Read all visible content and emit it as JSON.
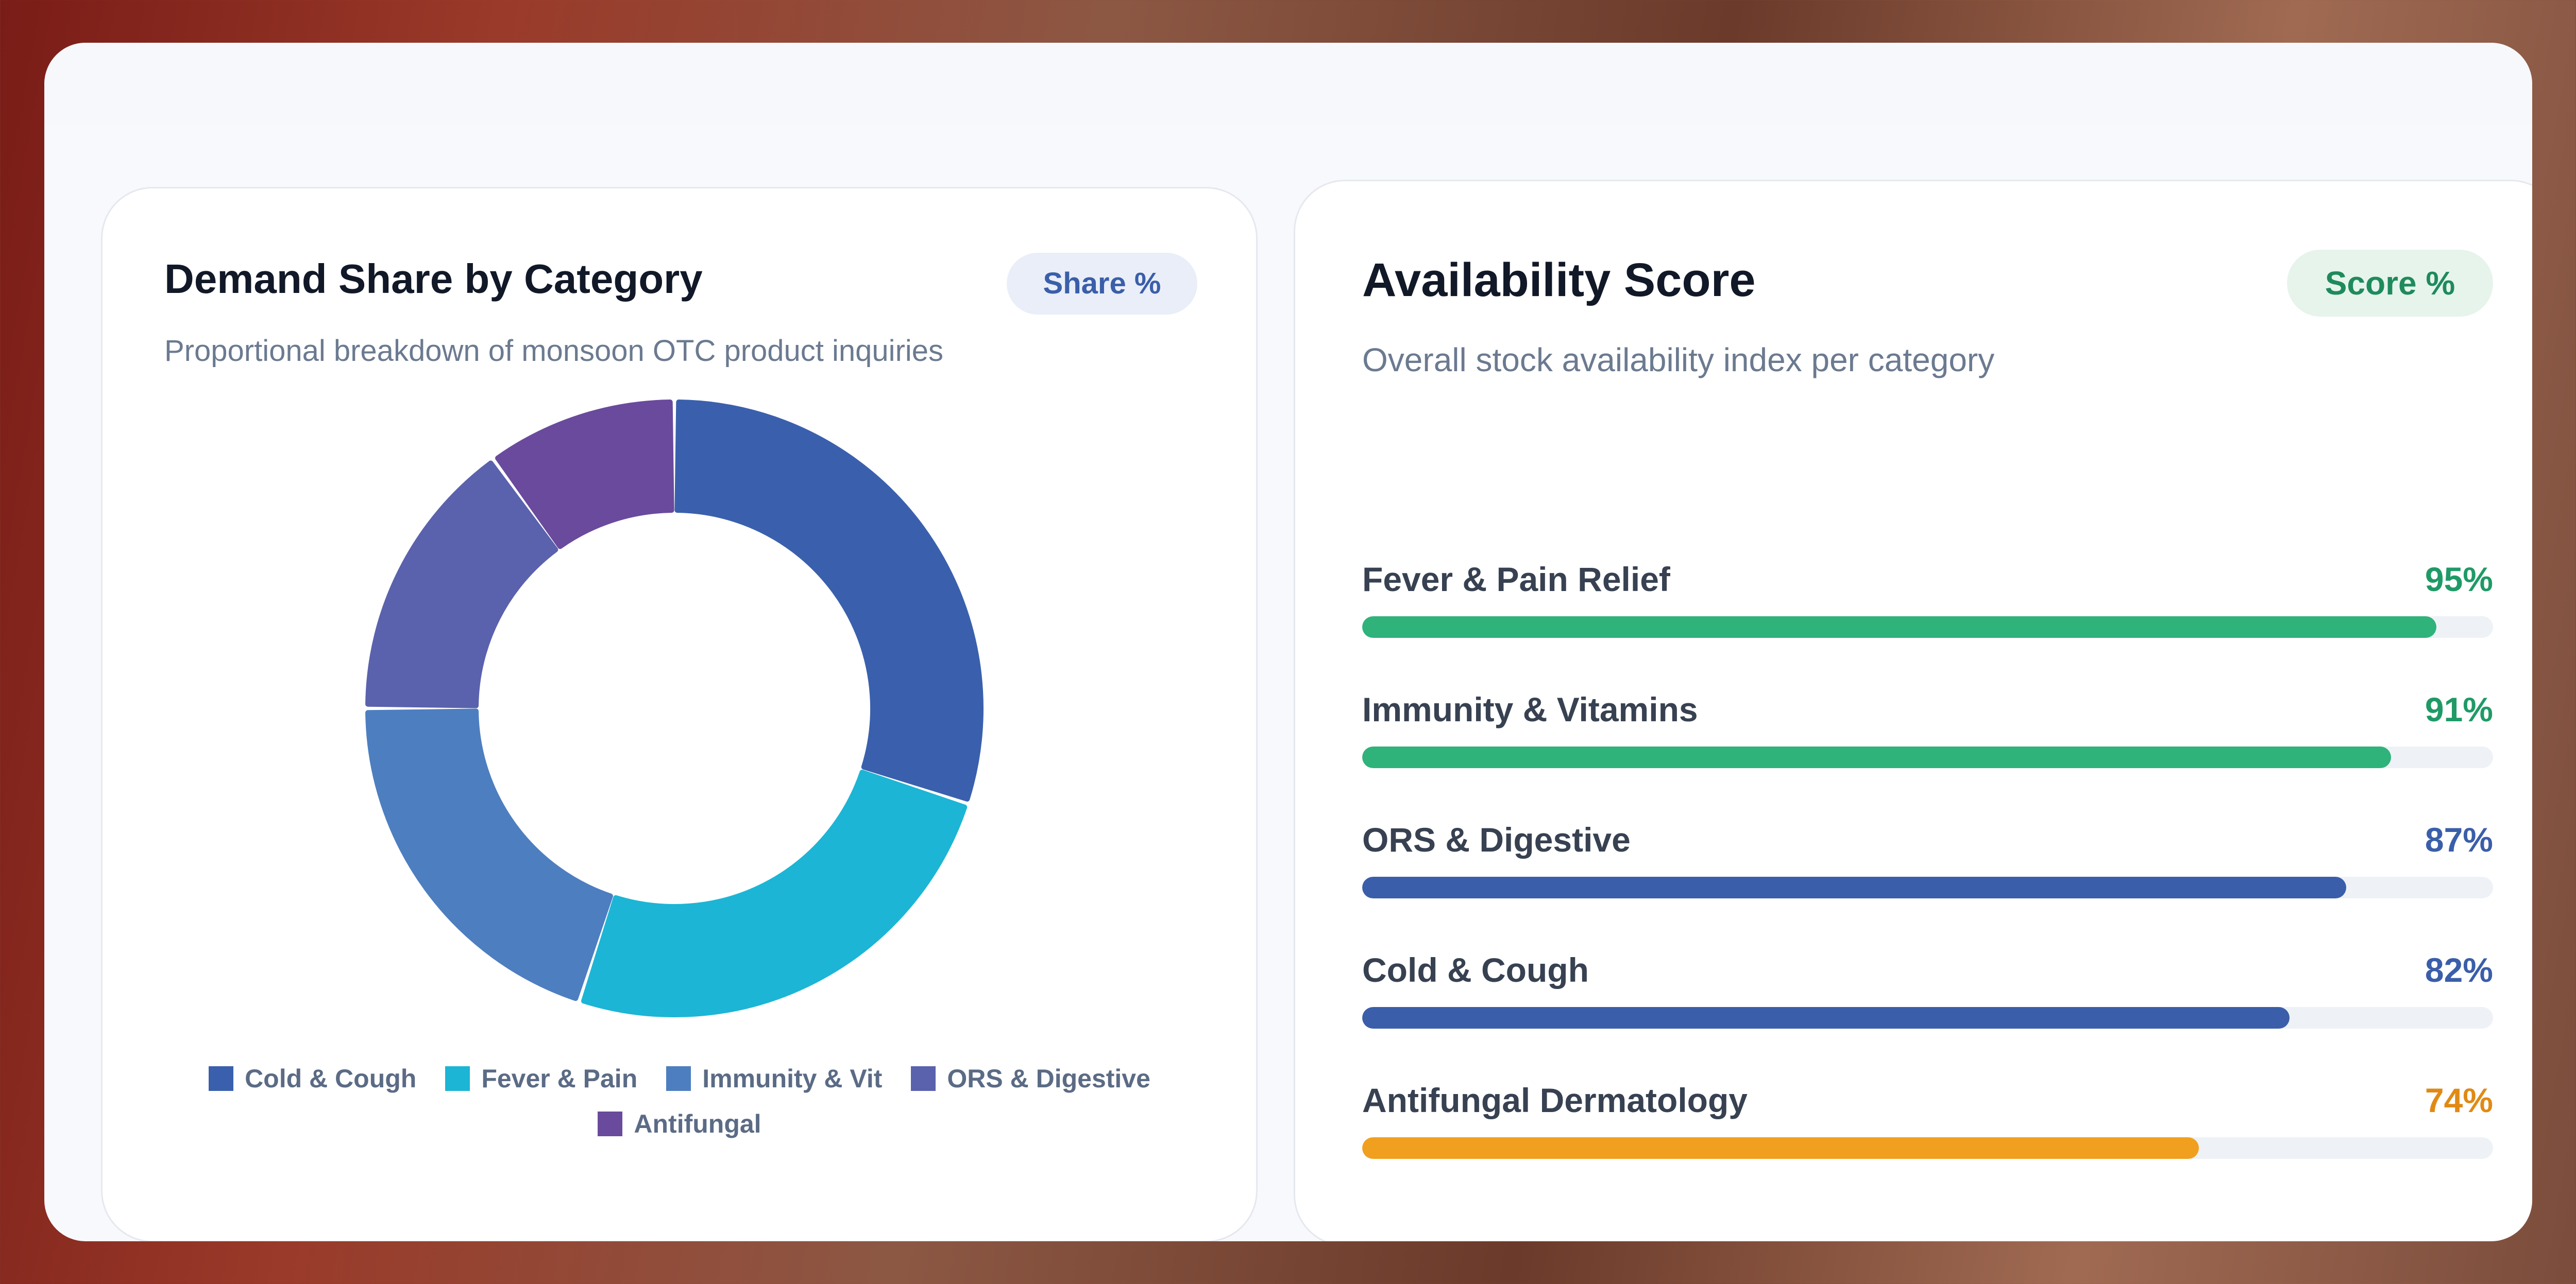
{
  "demand_card": {
    "title": "Demand Share by Category",
    "badge": "Share %",
    "subtitle": "Proportional breakdown of monsoon OTC product inquiries"
  },
  "availability_card": {
    "title": "Availability Score",
    "badge": "Score %",
    "subtitle": "Overall stock availability index per category"
  },
  "chart_data": [
    {
      "type": "pie",
      "title": "Demand Share by Category",
      "subtitle": "Proportional breakdown of monsoon OTC product inquiries",
      "categories": [
        "Cold & Cough",
        "Fever & Pain",
        "Immunity & Vit",
        "ORS & Digestive",
        "Antifungal"
      ],
      "values": [
        30,
        25,
        20,
        15,
        10
      ],
      "colors": [
        "#3a60ad",
        "#1cb5d5",
        "#4d7ec0",
        "#5a62ad",
        "#6a4a9c"
      ],
      "legend_position": "bottom",
      "donut": true
    },
    {
      "type": "bar",
      "orientation": "horizontal",
      "title": "Availability Score",
      "subtitle": "Overall stock availability index per category",
      "categories": [
        "Fever & Pain Relief",
        "Immunity & Vitamins",
        "ORS & Digestive",
        "Cold & Cough",
        "Antifungal Dermatology"
      ],
      "values": [
        95,
        91,
        87,
        82,
        74
      ],
      "value_labels": [
        "95%",
        "91%",
        "87%",
        "82%",
        "74%"
      ],
      "colors": [
        "#2fb37b",
        "#2fb37b",
        "#3a5ea9",
        "#3a5ea9",
        "#f0a01e"
      ],
      "label_colors": [
        "#1f9a66",
        "#1f9a66",
        "#3a5ea9",
        "#3a5ea9",
        "#e08a14"
      ],
      "xlim": [
        0,
        100
      ]
    }
  ]
}
